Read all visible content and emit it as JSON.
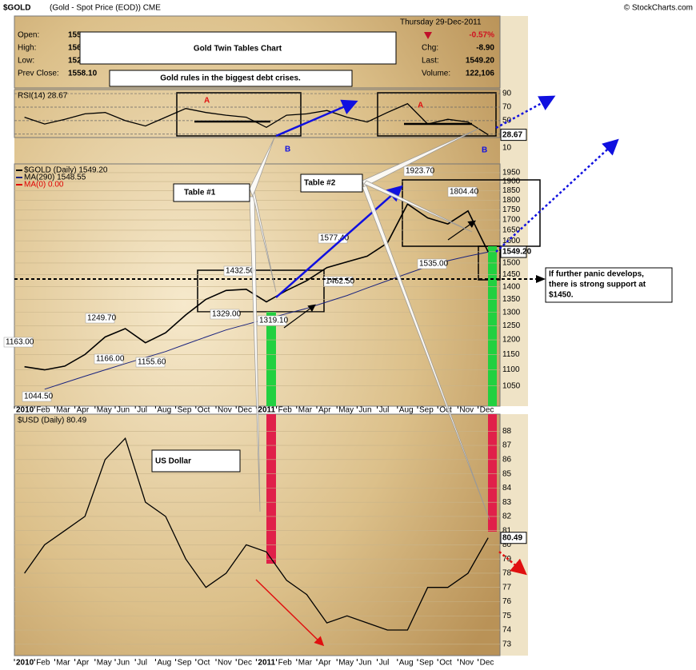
{
  "header": {
    "symbol": "$GOLD",
    "description": "(Gold - Spot Price (EOD)) CME",
    "copyright": "© StockCharts.com",
    "date": "Thursday 29-Dec-2011",
    "change_pct": "-0.57%",
    "fields": [
      {
        "label": "Open:",
        "value": "155"
      },
      {
        "label": "High:",
        "value": "156"
      },
      {
        "label": "Low:",
        "value": "152"
      },
      {
        "label": "Prev Close:",
        "value": "1558.10"
      }
    ],
    "fields_right": [
      {
        "label": "Chg:",
        "value": "-8.90"
      },
      {
        "label": "Last:",
        "value": "1549.20"
      },
      {
        "label": "Volume:",
        "value": "122,106"
      }
    ],
    "title": "Gold Twin Tables Chart",
    "subtitle": "Gold rules in the biggest debt crises."
  },
  "callouts": {
    "table1": "Table #1",
    "table2": "Table #2",
    "support": [
      "If further panic develops,",
      "there is strong support at",
      "$1450."
    ],
    "usd": "US Dollar",
    "a": "A",
    "b": "B"
  },
  "chart_data": [
    {
      "type": "line",
      "legend": "RSI(14) 28.67",
      "color": "#000000",
      "values": [
        55,
        45,
        52,
        60,
        62,
        50,
        42,
        55,
        68,
        62,
        58,
        55,
        40,
        58,
        60,
        65,
        55,
        48,
        62,
        75,
        45,
        52,
        48,
        29
      ],
      "ylim": [
        25,
        96
      ],
      "yticks": [
        10,
        30,
        50,
        70,
        90
      ],
      "last_value_label": "28.67"
    },
    {
      "type": "line",
      "log": true,
      "grid": true,
      "categories": [
        "2010",
        "Feb",
        "Mar",
        "Apr",
        "May",
        "Jun",
        "Jul",
        "Aug",
        "Sep",
        "Oct",
        "Nov",
        "Dec",
        "2011",
        "Feb",
        "Mar",
        "Apr",
        "May",
        "Jun",
        "Jul",
        "Aug",
        "Sep",
        "Oct",
        "Nov",
        "Dec"
      ],
      "series": [
        {
          "name": "$GOLD (Daily) 1549.20",
          "color": "#000000",
          "values": [
            1110,
            1100,
            1112,
            1150,
            1210,
            1240,
            1190,
            1225,
            1290,
            1350,
            1385,
            1390,
            1340,
            1385,
            1425,
            1480,
            1505,
            1530,
            1590,
            1780,
            1710,
            1680,
            1745,
            1549.2
          ]
        },
        {
          "name": "MA(290) 1548.55",
          "color": "#1a237e",
          "values": [
            null,
            1040,
            1060,
            1080,
            1100,
            1120,
            1140,
            1160,
            1185,
            1210,
            1235,
            1255,
            1275,
            1295,
            1315,
            1340,
            1365,
            1395,
            1425,
            1455,
            1485,
            1510,
            1530,
            1548.55
          ]
        }
      ],
      "inactive_legend": {
        "name": "MA(0) 0.00",
        "color": "#e00000"
      },
      "annotations": [
        "1923.70",
        "1804.40",
        "1577.40",
        "1432.50",
        "1329.00",
        "1319.10",
        "1462.50",
        "1535.00",
        "1249.70",
        "1166.00",
        "1155.60",
        "1163.00",
        "1044.50"
      ],
      "ylim": [
        990,
        2000
      ],
      "yticks": [
        1050,
        1100,
        1150,
        1200,
        1250,
        1300,
        1350,
        1400,
        1450,
        1500,
        1550,
        1600,
        1650,
        1700,
        1750,
        1800,
        1850,
        1900,
        1950
      ],
      "last_value_label": "1549.20"
    },
    {
      "type": "line",
      "grid": true,
      "legend": "$USD (Daily) 80.49",
      "categories": [
        "2010",
        "Feb",
        "Mar",
        "Apr",
        "May",
        "Jun",
        "Jul",
        "Aug",
        "Sep",
        "Oct",
        "Nov",
        "Dec",
        "2011",
        "Feb",
        "Mar",
        "Apr",
        "May",
        "Jun",
        "Jul",
        "Aug",
        "Sep",
        "Oct",
        "Nov",
        "Dec"
      ],
      "color": "#000000",
      "values": [
        78,
        80,
        81,
        82,
        86,
        87.5,
        83,
        82,
        79,
        77,
        78,
        80,
        79.5,
        77.5,
        76.5,
        74.5,
        75,
        74.5,
        74,
        74,
        77,
        77,
        78,
        80.49
      ],
      "ylim": [
        72.2,
        89.2
      ],
      "yticks": [
        73,
        74,
        75,
        76,
        77,
        78,
        79,
        80,
        81,
        82,
        83,
        84,
        85,
        86,
        87,
        88
      ],
      "last_value_label": "80.49"
    }
  ]
}
